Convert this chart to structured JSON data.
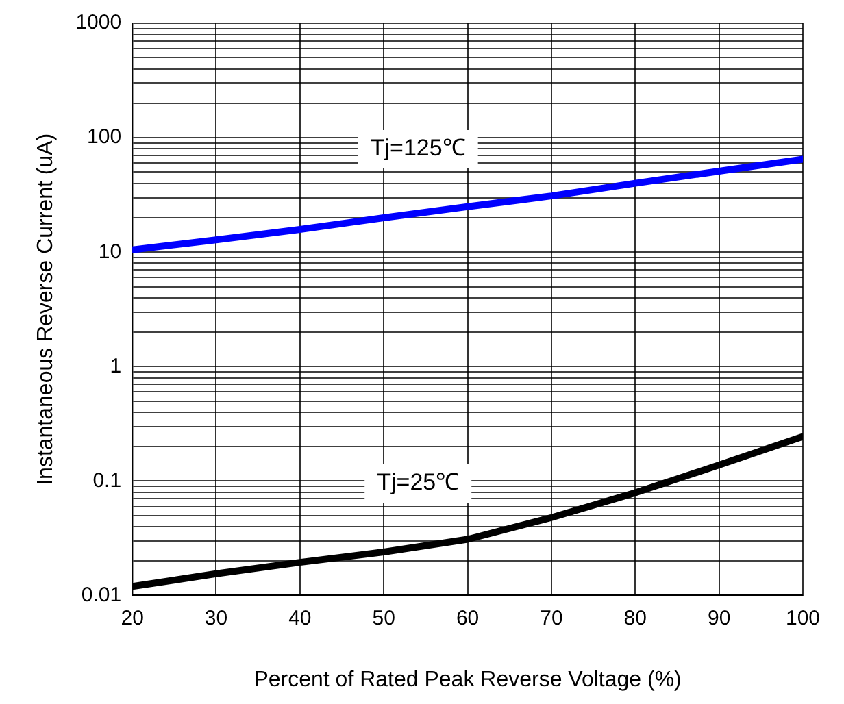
{
  "chart_data": {
    "type": "line",
    "xlabel": "Percent of Rated Peak Reverse Voltage (%)",
    "ylabel": "Instantaneous Reverse Current (uA)",
    "x": [
      20,
      30,
      40,
      50,
      60,
      70,
      80,
      90,
      100
    ],
    "series": [
      {
        "name": "Tj=125℃",
        "color": "#0000ff",
        "values": [
          10.5,
          12.8,
          15.8,
          20,
          25,
          31,
          40,
          51,
          65
        ]
      },
      {
        "name": "Tj=25℃",
        "color": "#000000",
        "values": [
          0.012,
          0.0155,
          0.0195,
          0.024,
          0.031,
          0.048,
          0.079,
          0.138,
          0.245
        ]
      }
    ],
    "log": "y",
    "xlim": [
      20,
      100
    ],
    "xticks": [
      20,
      30,
      40,
      50,
      60,
      70,
      80,
      90,
      100
    ],
    "ylim": [
      0.01,
      1000
    ],
    "yticks": [
      0.01,
      {
        "value": 0.02,
        "label": null
      },
      {
        "value": 0.03,
        "label": null
      },
      {
        "value": 0.04,
        "label": null
      },
      {
        "value": 0.05,
        "label": null
      },
      {
        "value": 0.06,
        "label": null
      },
      {
        "value": 0.07,
        "label": null
      },
      {
        "value": 0.08,
        "label": null
      },
      {
        "value": 0.09,
        "label": null
      },
      0.1,
      {
        "value": 0.2,
        "label": null
      },
      {
        "value": 0.3,
        "label": null
      },
      {
        "value": 0.4,
        "label": null
      },
      {
        "value": 0.5,
        "label": null
      },
      {
        "value": 0.6,
        "label": null
      },
      {
        "value": 0.7,
        "label": null
      },
      {
        "value": 0.8,
        "label": null
      },
      {
        "value": 0.9,
        "label": null
      },
      1,
      {
        "value": 2,
        "label": null
      },
      {
        "value": 3,
        "label": null
      },
      {
        "value": 4,
        "label": null
      },
      {
        "value": 5,
        "label": null
      },
      {
        "value": 6,
        "label": null
      },
      {
        "value": 7,
        "label": null
      },
      {
        "value": 8,
        "label": null
      },
      {
        "value": 9,
        "label": null
      },
      10,
      {
        "value": 20,
        "label": null
      },
      {
        "value": 30,
        "label": null
      },
      {
        "value": 40,
        "label": null
      },
      {
        "value": 50,
        "label": null
      },
      {
        "value": 60,
        "label": null
      },
      {
        "value": 70,
        "label": null
      },
      {
        "value": 80,
        "label": null
      },
      {
        "value": 90,
        "label": null
      },
      100,
      {
        "value": 200,
        "label": null
      },
      {
        "value": 300,
        "label": null
      },
      {
        "value": 400,
        "label": null
      },
      {
        "value": 500,
        "label": null
      },
      {
        "value": 600,
        "label": null
      },
      {
        "value": 700,
        "label": null
      },
      {
        "value": 800,
        "label": null
      },
      {
        "value": 900,
        "label": null
      },
      1000
    ],
    "grid": true,
    "legend": false,
    "marker": "none",
    "line_style": "solid"
  }
}
